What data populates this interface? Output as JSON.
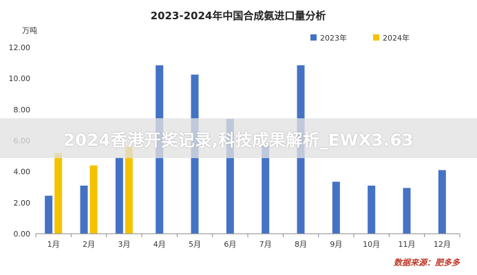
{
  "chart_data": {
    "type": "bar",
    "title": "2023-2024年中国合成氨进口量分析",
    "ylabel": "万吨",
    "xlabel": "",
    "ylim": [
      0,
      12
    ],
    "yticks": [
      "0.00",
      "2.00",
      "4.00",
      "6.00",
      "8.00",
      "10.00",
      "12.00"
    ],
    "categories": [
      "1月",
      "2月",
      "3月",
      "4月",
      "5月",
      "6月",
      "7月",
      "8月",
      "9月",
      "10月",
      "11月",
      "12月"
    ],
    "series": [
      {
        "name": "2023年",
        "color": "#4472c4",
        "values": [
          2.45,
          3.1,
          4.9,
          10.85,
          10.25,
          7.4,
          5.7,
          10.85,
          3.35,
          3.1,
          2.95,
          4.1
        ]
      },
      {
        "name": "2024年",
        "color": "#f5c200",
        "values": [
          5.2,
          4.4,
          5.6,
          null,
          null,
          null,
          null,
          null,
          null,
          null,
          null,
          null
        ]
      }
    ],
    "grid": false,
    "legend_position": "top-right",
    "source": "数据来源：肥多多"
  },
  "watermark_text": "2024香港开奖记录,科技成果解析_EWX3.63"
}
